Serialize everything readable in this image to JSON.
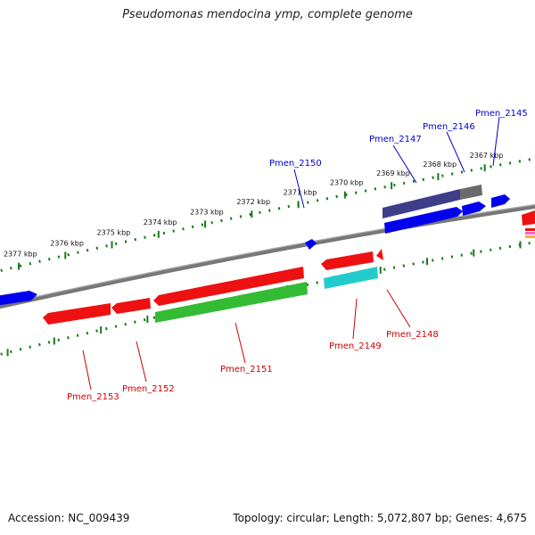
{
  "title": "Pseudomonas mendocina ymp, complete genome",
  "footer": {
    "accession": "Accession: NC_009439",
    "summary": "Topology: circular; Length: 5,072,807 bp; Genes: 4,675"
  },
  "colors": {
    "forward_label": "#0000cc",
    "reverse_label": "#cc0000",
    "backbone": "#777777",
    "scale": "#1a7a1a"
  },
  "scale_ticks": [
    "2377 kbp",
    "2376 kbp",
    "2375 kbp",
    "2374 kbp",
    "2373 kbp",
    "2372 kbp",
    "2371 kbp",
    "2370 kbp",
    "2369 kbp",
    "2368 kbp",
    "2367 kbp"
  ],
  "genes": {
    "forward": [
      "Pmen_2150",
      "Pmen_2147",
      "Pmen_2146",
      "Pmen_2145"
    ],
    "reverse": [
      "Pmen_2153",
      "Pmen_2152",
      "Pmen_2151",
      "Pmen_2149",
      "Pmen_2148"
    ]
  }
}
